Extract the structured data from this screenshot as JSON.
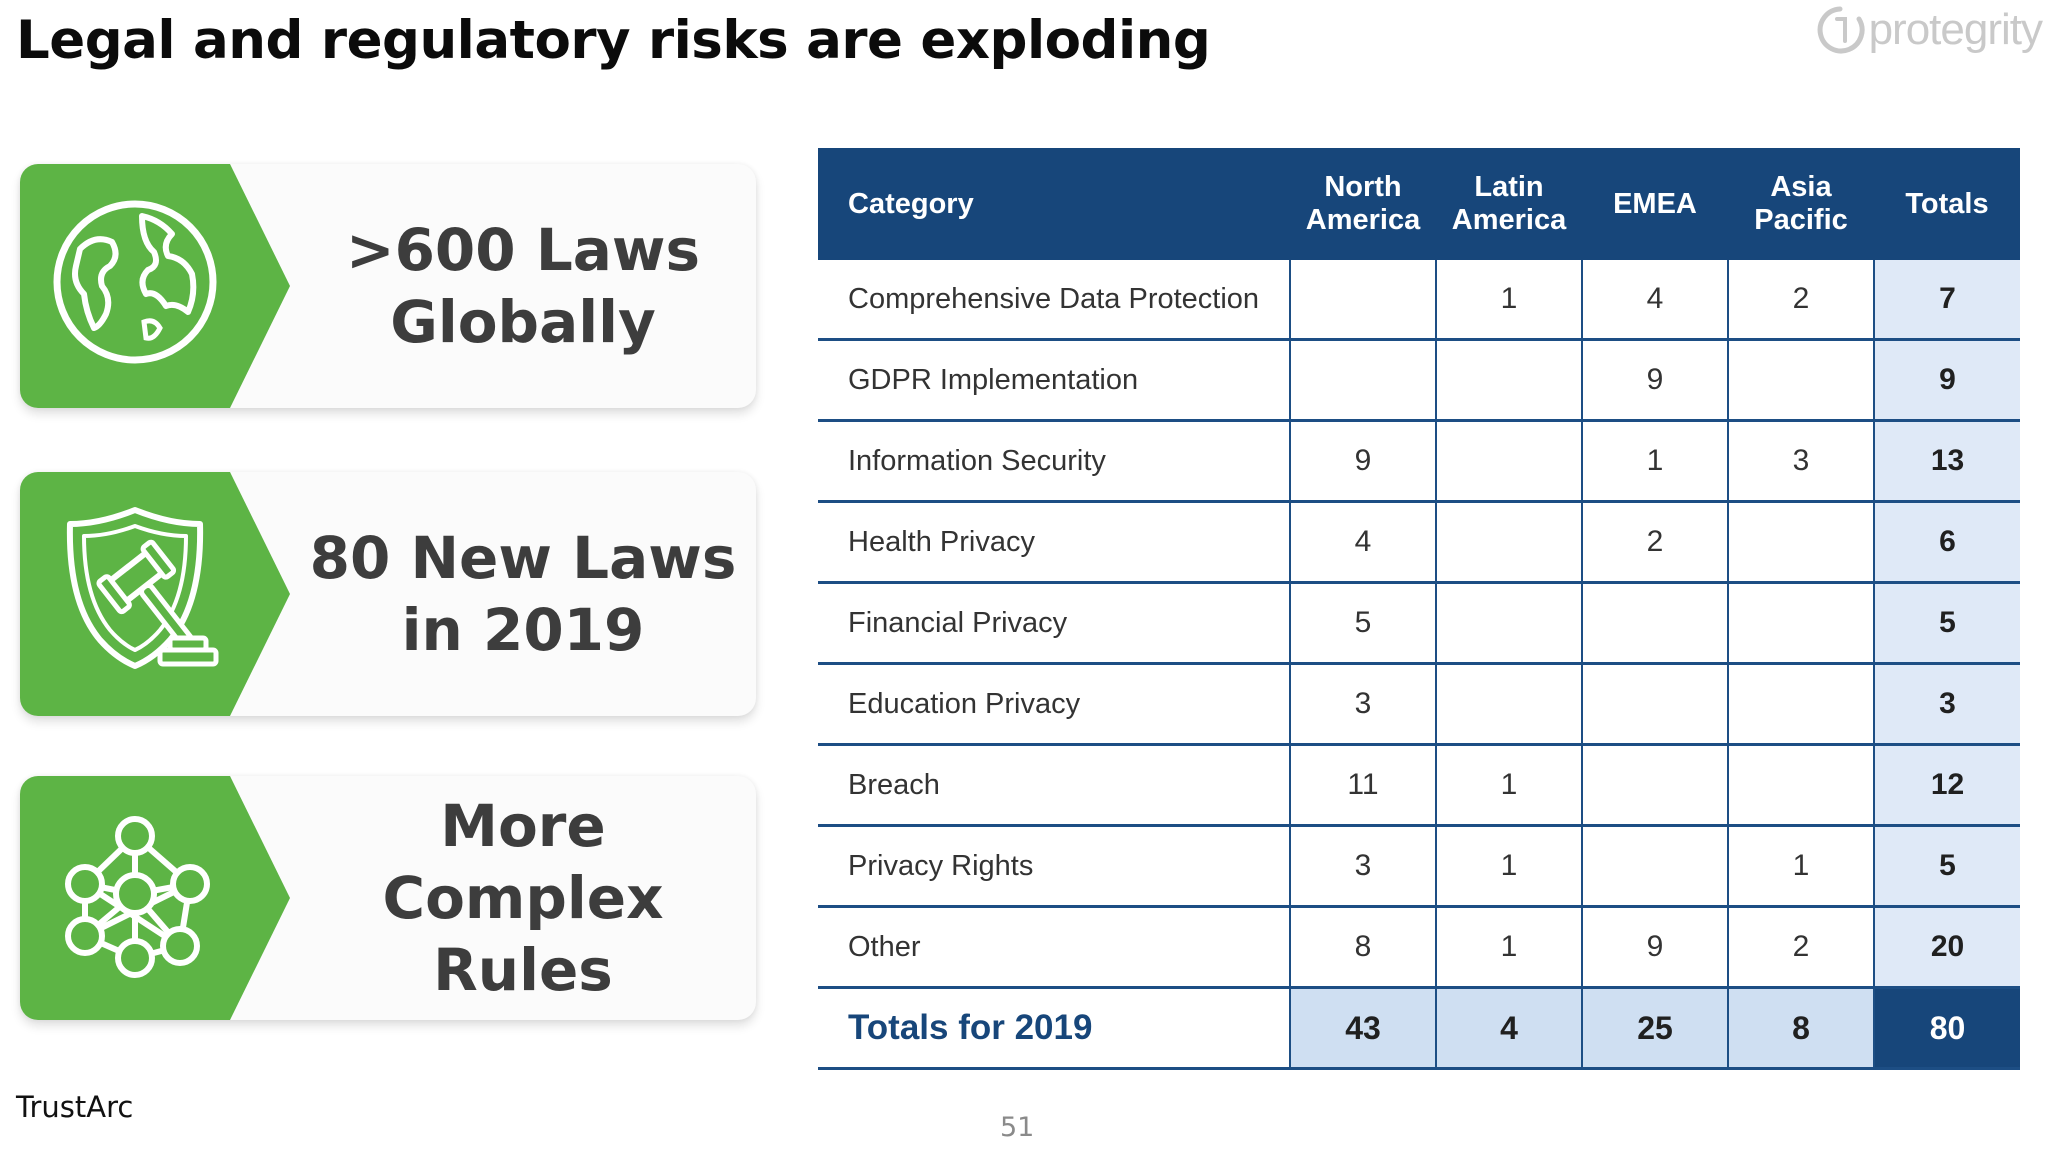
{
  "slide": {
    "title": "Legal and regulatory risks are exploding",
    "logo_text": "protegrity",
    "footer_source": "TrustArc",
    "page_number": "51"
  },
  "cards": [
    {
      "icon": "globe-icon",
      "line1": ">600 Laws",
      "line2": "Globally"
    },
    {
      "icon": "shield-gavel-icon",
      "line1": "80 New Laws",
      "line2": "in 2019"
    },
    {
      "icon": "network-nodes-icon",
      "line1": "More Complex",
      "line2": "Rules"
    }
  ],
  "colors": {
    "accent_green": "#5db445",
    "header_navy": "#17467a",
    "totals_light_blue": "#dfe9f7"
  },
  "table": {
    "headers": {
      "category": "Category",
      "north_america": [
        "North",
        "America"
      ],
      "latin_america": [
        "Latin",
        "America"
      ],
      "emea": "EMEA",
      "asia_pacific": [
        "Asia",
        "Pacific"
      ],
      "totals": "Totals"
    },
    "rows": [
      {
        "category": "Comprehensive Data Protection",
        "na": "",
        "la": "1",
        "emea": "4",
        "apac": "2",
        "total": "7"
      },
      {
        "category": "GDPR Implementation",
        "na": "",
        "la": "",
        "emea": "9",
        "apac": "",
        "total": "9"
      },
      {
        "category": "Information Security",
        "na": "9",
        "la": "",
        "emea": "1",
        "apac": "3",
        "total": "13"
      },
      {
        "category": "Health Privacy",
        "na": "4",
        "la": "",
        "emea": "2",
        "apac": "",
        "total": "6"
      },
      {
        "category": "Financial Privacy",
        "na": "5",
        "la": "",
        "emea": "",
        "apac": "",
        "total": "5"
      },
      {
        "category": "Education Privacy",
        "na": "3",
        "la": "",
        "emea": "",
        "apac": "",
        "total": "3"
      },
      {
        "category": "Breach",
        "na": "11",
        "la": "1",
        "emea": "",
        "apac": "",
        "total": "12"
      },
      {
        "category": "Privacy Rights",
        "na": "3",
        "la": "1",
        "emea": "",
        "apac": "1",
        "total": "5"
      },
      {
        "category": "Other",
        "na": "8",
        "la": "1",
        "emea": "9",
        "apac": "2",
        "total": "20"
      }
    ],
    "totals_row": {
      "category": "Totals for 2019",
      "na": "43",
      "la": "4",
      "emea": "25",
      "apac": "8",
      "total": "80"
    }
  }
}
